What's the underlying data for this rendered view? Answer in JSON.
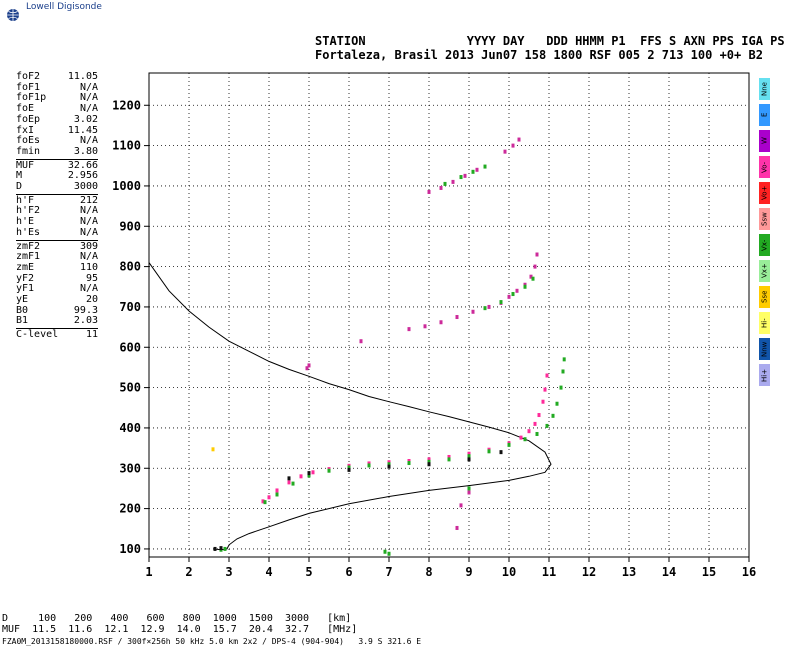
{
  "logo": {
    "text": "Lowell Digisonde",
    "icon": "globe-icon"
  },
  "header": {
    "labels": "STATION              YYYY DAY   DDD HHMM P1  FFS S AXN PPS IGA PS",
    "values": "Fortaleza, Brasil 2013 Jun07 158 1800 RSF 005 2 713 100 +0+ B2"
  },
  "params": [
    {
      "name": "foF2",
      "value": "11.05"
    },
    {
      "name": "foF1",
      "value": "N/A"
    },
    {
      "name": "foF1p",
      "value": "N/A"
    },
    {
      "name": "foE",
      "value": "N/A"
    },
    {
      "name": "foEp",
      "value": "3.02"
    },
    {
      "name": "fxI",
      "value": "11.45"
    },
    {
      "name": "foEs",
      "value": "N/A"
    },
    {
      "name": "fmin",
      "value": "3.80"
    },
    {
      "sep": true
    },
    {
      "name": "MUF",
      "value": "32.66"
    },
    {
      "name": "M",
      "value": "2.956"
    },
    {
      "name": "D",
      "value": "3000"
    },
    {
      "sep": true
    },
    {
      "name": "h'F",
      "value": "212"
    },
    {
      "name": "h'F2",
      "value": "N/A"
    },
    {
      "name": "h'E",
      "value": "N/A"
    },
    {
      "name": "h'Es",
      "value": "N/A"
    },
    {
      "sep": true
    },
    {
      "name": "zmF2",
      "value": "309"
    },
    {
      "name": "zmF1",
      "value": "N/A"
    },
    {
      "name": "zmE",
      "value": "110"
    },
    {
      "name": "yF2",
      "value": "95"
    },
    {
      "name": "yF1",
      "value": "N/A"
    },
    {
      "name": "yE",
      "value": "20"
    },
    {
      "name": "B0",
      "value": "99.3"
    },
    {
      "name": "B1",
      "value": "2.03"
    },
    {
      "sep": true
    },
    {
      "name": "C-level",
      "value": "11"
    }
  ],
  "legend": [
    {
      "label": "Nne",
      "color": "#66e0f0"
    },
    {
      "label": "E",
      "color": "#3399ff"
    },
    {
      "label": "W",
      "color": "#aa00cc"
    },
    {
      "label": "Vo-",
      "color": "#ff33aa"
    },
    {
      "label": "Vo+",
      "color": "#ff2222"
    },
    {
      "label": "Ssw",
      "color": "#ff9999"
    },
    {
      "label": "Vx-",
      "color": "#22aa22"
    },
    {
      "label": "Vx+",
      "color": "#99ee99"
    },
    {
      "label": "Sse",
      "color": "#ffcc00"
    },
    {
      "label": "Hi-",
      "color": "#ffff66"
    },
    {
      "label": "Nnw",
      "color": "#1155aa"
    },
    {
      "label": "Hi+",
      "color": "#aaaaee"
    }
  ],
  "bottom_table": {
    "row1": "D     100   200   400   600   800  1000  1500  3000   [km]",
    "row2": "MUF  11.5  11.6  12.1  12.9  14.0  15.7  20.4  32.7   [MHz]"
  },
  "footer": "FZA0M_2013158180000.RSF / 300f×256h 50 kHz 5.0 km 2x2 / DPS-4 (904-904)   3.9 S 321.6 E",
  "chart_data": {
    "type": "scatter",
    "xlim": [
      1,
      16
    ],
    "ylim": [
      80,
      1280
    ],
    "xticks": [
      1,
      2,
      3,
      4,
      5,
      6,
      7,
      8,
      9,
      10,
      11,
      12,
      13,
      14,
      15,
      16
    ],
    "yticks": [
      100,
      200,
      300,
      400,
      500,
      600,
      700,
      800,
      900,
      1000,
      1100,
      1200
    ],
    "grid": true,
    "series": [
      {
        "color": "#ff2a9a",
        "points": [
          [
            3.85,
            218
          ],
          [
            4.0,
            228
          ],
          [
            4.2,
            245
          ],
          [
            4.5,
            265
          ],
          [
            4.8,
            280
          ],
          [
            5.1,
            290
          ],
          [
            5.5,
            298
          ],
          [
            6.0,
            306
          ],
          [
            6.5,
            312
          ],
          [
            7.0,
            315
          ],
          [
            7.5,
            318
          ],
          [
            8.0,
            322
          ],
          [
            8.5,
            328
          ],
          [
            9.0,
            336
          ],
          [
            9.5,
            346
          ],
          [
            10.0,
            362
          ],
          [
            10.3,
            376
          ],
          [
            10.5,
            392
          ],
          [
            10.65,
            410
          ],
          [
            10.75,
            432
          ],
          [
            10.85,
            465
          ],
          [
            10.9,
            495
          ],
          [
            10.95,
            530
          ]
        ]
      },
      {
        "color": "#22aa22",
        "points": [
          [
            3.9,
            216
          ],
          [
            4.2,
            235
          ],
          [
            4.6,
            262
          ],
          [
            5.0,
            282
          ],
          [
            5.5,
            294
          ],
          [
            6.0,
            302
          ],
          [
            6.5,
            307
          ],
          [
            7.0,
            310
          ],
          [
            7.5,
            313
          ],
          [
            8.0,
            316
          ],
          [
            8.5,
            322
          ],
          [
            9.0,
            330
          ],
          [
            9.5,
            342
          ],
          [
            10.0,
            358
          ],
          [
            10.4,
            372
          ],
          [
            10.7,
            385
          ],
          [
            10.95,
            405
          ],
          [
            11.1,
            430
          ],
          [
            11.2,
            460
          ],
          [
            11.3,
            500
          ],
          [
            11.35,
            540
          ],
          [
            11.38,
            570
          ]
        ]
      },
      {
        "color": "#111111",
        "points": [
          [
            4.5,
            275
          ],
          [
            5.0,
            288
          ],
          [
            6.0,
            296
          ],
          [
            7.0,
            304
          ],
          [
            8.0,
            310
          ],
          [
            9.0,
            322
          ],
          [
            9.8,
            340
          ]
        ]
      },
      {
        "color": "#cc2a9a",
        "points": [
          [
            7.5,
            645
          ],
          [
            7.9,
            652
          ],
          [
            8.3,
            662
          ],
          [
            8.7,
            675
          ],
          [
            9.1,
            688
          ],
          [
            9.5,
            700
          ],
          [
            9.8,
            710
          ],
          [
            10.0,
            725
          ],
          [
            10.2,
            740
          ],
          [
            10.4,
            755
          ],
          [
            10.55,
            775
          ],
          [
            10.65,
            800
          ],
          [
            10.7,
            830
          ]
        ]
      },
      {
        "color": "#22aa22",
        "points": [
          [
            9.4,
            697
          ],
          [
            9.8,
            712
          ],
          [
            10.1,
            732
          ],
          [
            10.4,
            750
          ],
          [
            10.6,
            770
          ]
        ]
      },
      {
        "color": "#cc2a9a",
        "points": [
          [
            8.0,
            985
          ],
          [
            8.3,
            995
          ],
          [
            8.6,
            1010
          ],
          [
            8.9,
            1025
          ],
          [
            9.2,
            1040
          ]
        ]
      },
      {
        "color": "#22aa22",
        "points": [
          [
            8.4,
            1005
          ],
          [
            8.8,
            1022
          ],
          [
            9.1,
            1035
          ],
          [
            9.4,
            1048
          ]
        ]
      },
      {
        "color": "#cc2a9a",
        "points": [
          [
            9.9,
            1085
          ],
          [
            10.1,
            1100
          ],
          [
            10.25,
            1115
          ]
        ]
      },
      {
        "color": "#cc2a9a",
        "points": [
          [
            5.0,
            555
          ],
          [
            4.95,
            548
          ],
          [
            6.3,
            615
          ],
          [
            8.7,
            152
          ],
          [
            8.8,
            208
          ],
          [
            9.0,
            240
          ]
        ]
      },
      {
        "color": "#22aa22",
        "points": [
          [
            2.8,
            98
          ],
          [
            2.9,
            100
          ],
          [
            6.9,
            93
          ],
          [
            7.0,
            88
          ],
          [
            9.0,
            250
          ]
        ]
      },
      {
        "color": "#111111",
        "points": [
          [
            2.65,
            100
          ],
          [
            2.8,
            102
          ]
        ]
      },
      {
        "color": "#ffcc00",
        "points": [
          [
            2.6,
            347
          ]
        ]
      }
    ],
    "profile": [
      [
        1.0,
        810
      ],
      [
        1.5,
        740
      ],
      [
        2.0,
        690
      ],
      [
        2.5,
        650
      ],
      [
        3.0,
        615
      ],
      [
        3.5,
        590
      ],
      [
        4.0,
        565
      ],
      [
        4.5,
        545
      ],
      [
        5.0,
        528
      ],
      [
        5.5,
        510
      ],
      [
        6.0,
        495
      ],
      [
        6.5,
        478
      ],
      [
        7.0,
        465
      ],
      [
        7.5,
        453
      ],
      [
        8.0,
        440
      ],
      [
        8.5,
        428
      ],
      [
        9.0,
        415
      ],
      [
        9.5,
        402
      ],
      [
        10.0,
        388
      ],
      [
        10.5,
        368
      ],
      [
        10.9,
        340
      ],
      [
        11.05,
        310
      ],
      [
        10.9,
        290
      ],
      [
        10.5,
        280
      ],
      [
        10.0,
        270
      ],
      [
        9.0,
        257
      ],
      [
        8.0,
        245
      ],
      [
        7.0,
        230
      ],
      [
        6.0,
        212
      ],
      [
        5.0,
        188
      ],
      [
        4.5,
        172
      ],
      [
        4.0,
        155
      ],
      [
        3.5,
        138
      ],
      [
        3.2,
        125
      ],
      [
        3.0,
        110
      ],
      [
        2.95,
        100
      ],
      [
        2.8,
        98
      ],
      [
        2.6,
        100
      ]
    ]
  }
}
